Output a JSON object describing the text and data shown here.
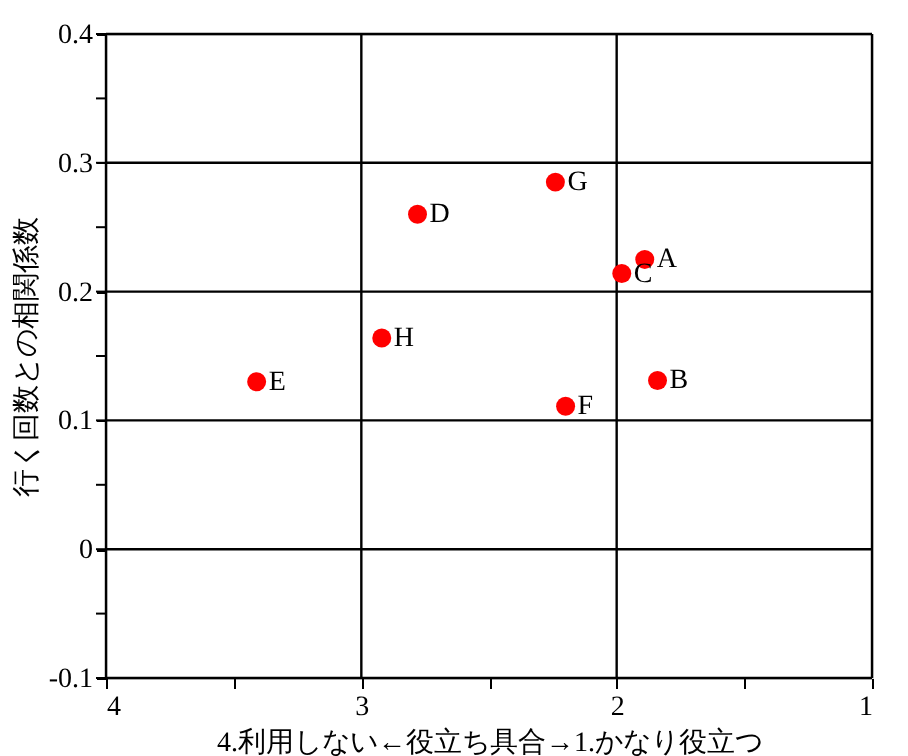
{
  "chart_data": {
    "type": "scatter",
    "xlabel": "4.利用しない←役立ち具合→1.かなり役立つ",
    "ylabel": "行く回数との相関係数",
    "x": [
      1.89,
      1.84,
      1.98,
      2.78,
      3.41,
      2.2,
      2.24,
      2.92
    ],
    "series": [
      {
        "color": "#ff0000",
        "values": [
          0.225,
          0.131,
          0.214,
          0.26,
          0.13,
          0.111,
          0.285,
          0.164
        ]
      }
    ],
    "annotations": [
      {
        "text": "A",
        "x": 1.89,
        "y": 0.225
      },
      {
        "text": "B",
        "x": 1.84,
        "y": 0.131
      },
      {
        "text": "C",
        "x": 1.98,
        "y": 0.214
      },
      {
        "text": "D",
        "x": 2.78,
        "y": 0.26
      },
      {
        "text": "E",
        "x": 3.41,
        "y": 0.13
      },
      {
        "text": "F",
        "x": 2.2,
        "y": 0.111
      },
      {
        "text": "G",
        "x": 2.24,
        "y": 0.285
      },
      {
        "text": "H",
        "x": 2.92,
        "y": 0.164
      }
    ],
    "xlim": [
      4,
      1
    ],
    "xticks": [
      4,
      {
        "value": 3.5,
        "label": null
      },
      3,
      {
        "value": 2.5,
        "label": null
      },
      2,
      {
        "value": 1.5,
        "label": null
      },
      1
    ],
    "ylim": [
      -0.1,
      0.4
    ],
    "yticks": [
      -0.1,
      {
        "value": -0.05,
        "label": null
      },
      0,
      {
        "value": 0.05,
        "label": null
      },
      0.1,
      {
        "value": 0.15,
        "label": null
      },
      0.2,
      {
        "value": 0.25,
        "label": null
      },
      0.3,
      {
        "value": 0.35,
        "label": null
      },
      0.4
    ],
    "grid": true,
    "marker": "circle"
  }
}
